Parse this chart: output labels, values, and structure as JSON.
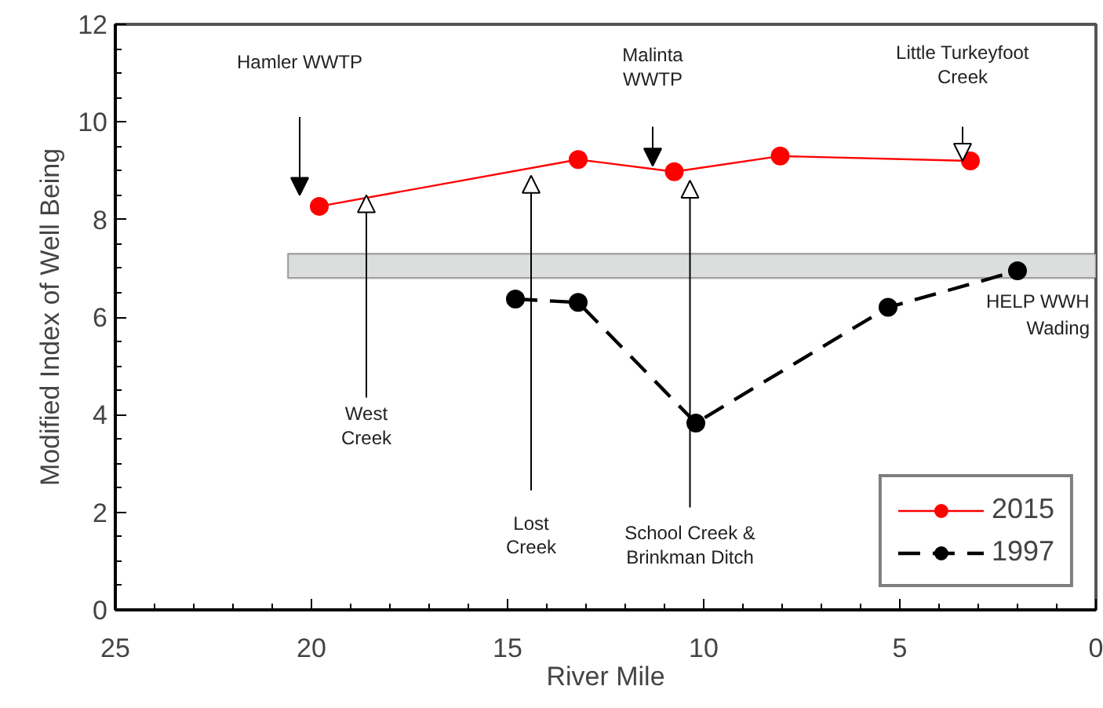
{
  "chart_data": {
    "type": "line",
    "xlabel": "River Mile",
    "ylabel": "Modified Index of Well Being",
    "xlim": [
      25,
      0
    ],
    "xticks": [
      25,
      20,
      15,
      10,
      5,
      0
    ],
    "ylim": [
      0,
      12
    ],
    "yticks": [
      0,
      2,
      4,
      6,
      8,
      10,
      12
    ],
    "grid": false,
    "legend": "bottom right",
    "marker": "circle",
    "series": [
      {
        "name": "2015",
        "color": "#ff0000",
        "line_style": "solid",
        "x": [
          19.8,
          13.2,
          10.75,
          8.05,
          3.2
        ],
        "values": [
          8.27,
          9.23,
          8.98,
          9.3,
          9.2
        ]
      },
      {
        "name": "1997",
        "color": "#000000",
        "line_style": "dashed",
        "x": [
          14.8,
          13.2,
          10.2,
          5.3,
          2.0
        ],
        "values": [
          6.37,
          6.3,
          3.83,
          6.2,
          6.95
        ]
      }
    ],
    "bands": [
      {
        "axis": "y",
        "from": 6.8,
        "to": 7.3,
        "label": "HELP WWH\nWading",
        "color": "#dcdddd"
      }
    ],
    "annotations": [
      "Hamler WWTP",
      {
        "text": "West\nCreek",
        "x": 18.6,
        "y": 8.5
      },
      "Lost\nCreek",
      "Malinta\nWWTP",
      "School Creek &\nBrinkman Ditch",
      "Little Turkeyfoot\nCreek"
    ]
  }
}
